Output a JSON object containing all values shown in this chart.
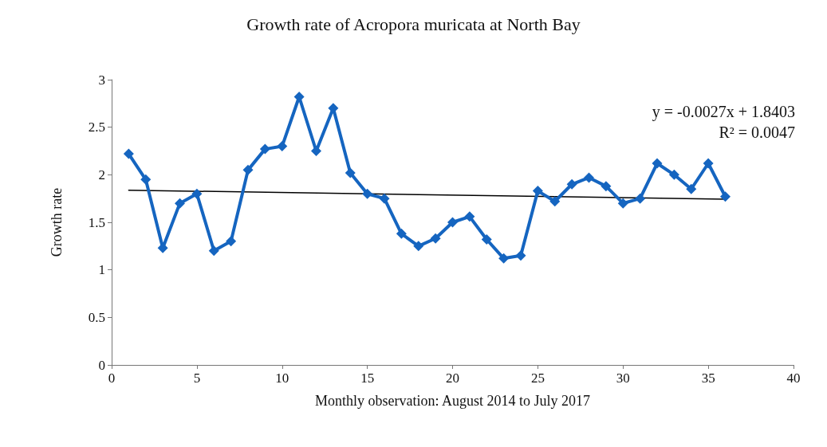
{
  "chart_data": {
    "type": "line",
    "title": "Growth rate of Acropora muricata at North Bay",
    "xlabel": "Monthly observation: August 2014 to July 2017",
    "ylabel": "Growth rate",
    "x": [
      1,
      2,
      3,
      4,
      5,
      6,
      7,
      8,
      9,
      10,
      11,
      12,
      13,
      14,
      15,
      16,
      17,
      18,
      19,
      20,
      21,
      22,
      23,
      24,
      25,
      26,
      27,
      28,
      29,
      30,
      31,
      32,
      33,
      34,
      35,
      36
    ],
    "series": [
      {
        "color": "#1565c0",
        "marker": "diamond",
        "values": [
          2.22,
          1.95,
          1.23,
          1.7,
          1.8,
          1.2,
          1.3,
          2.05,
          2.27,
          2.3,
          2.82,
          2.25,
          2.7,
          2.02,
          1.8,
          1.75,
          1.38,
          1.25,
          1.33,
          1.5,
          1.56,
          1.32,
          1.12,
          1.15,
          1.83,
          1.72,
          1.9,
          1.97,
          1.88,
          1.7,
          1.75,
          2.12,
          2.0,
          1.85,
          2.12,
          1.77
        ]
      },
      {
        "type": "line",
        "color": "#000000",
        "marker": "none",
        "x": [
          1,
          36
        ],
        "values": [
          1.8376,
          1.7431
        ]
      }
    ],
    "annotations": [
      "y = -0.0027x + 1.8403",
      "R² = 0.0047"
    ],
    "xlim": [
      0,
      40
    ],
    "xticks": [
      0,
      5,
      10,
      15,
      20,
      25,
      30,
      35,
      40
    ],
    "ylim": [
      0,
      3
    ],
    "yticks": [
      0,
      0.5,
      1,
      1.5,
      2,
      2.5,
      3
    ]
  }
}
